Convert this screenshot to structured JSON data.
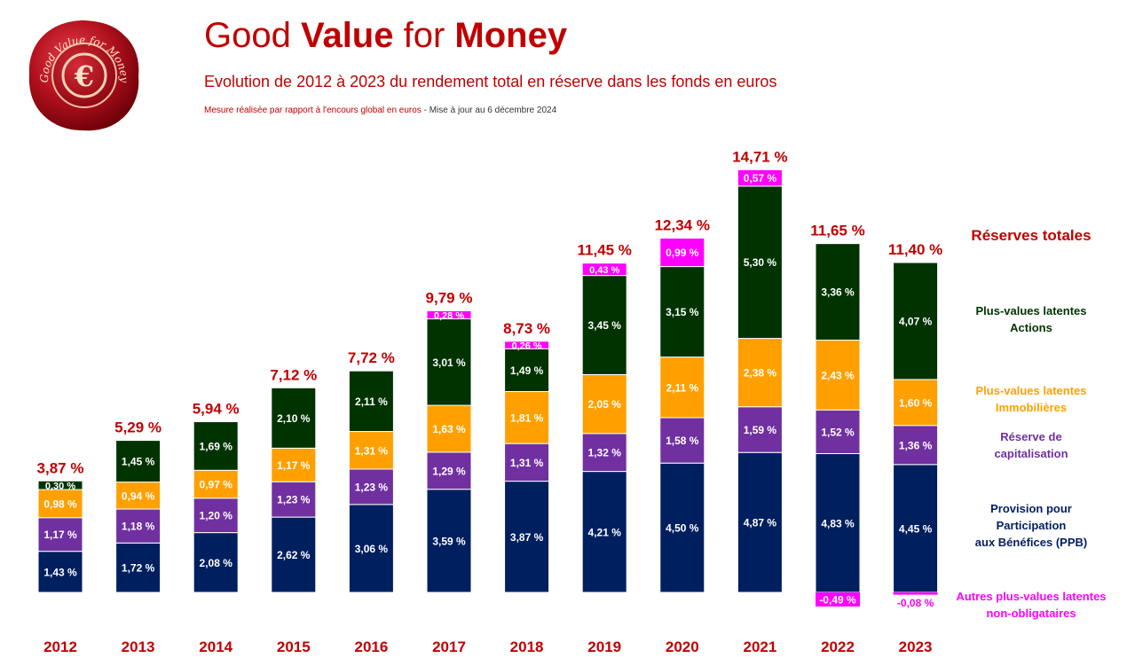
{
  "header": {
    "title_part1": "Good ",
    "title_part2": "Value",
    "title_part3": " for ",
    "title_part4": "Money",
    "subtitle": "Evolution de 2012 à 2023 du rendement total en réserve dans les fonds en euros",
    "note": "Mesure réalisée par rapport à l'encours global en euros",
    "update": " - Mise à jour au 6 décembre 2024"
  },
  "seal": {
    "text": "Good Value for Money",
    "symbol": "€"
  },
  "legend": {
    "total": "Réserves totales",
    "actions": "Plus-values latentes\nActions",
    "immo": "Plus-values latentes\nImmobilières",
    "capi": "Réserve de\ncapitalisation",
    "ppb": "Provision pour\nParticipation\naux Bénéfices (PPB)",
    "autres": "Autres plus-values latentes\nnon-obligataires"
  },
  "colors": {
    "ppb": "#001f5f",
    "capi": "#7030a0",
    "immo": "#ffa000",
    "actions": "#003300",
    "autres": "#ff00ff",
    "total": "#c00000"
  },
  "chart_data": {
    "type": "bar",
    "stacked": true,
    "categories": [
      "2012",
      "2013",
      "2014",
      "2015",
      "2016",
      "2017",
      "2018",
      "2019",
      "2020",
      "2021",
      "2022",
      "2023"
    ],
    "series": [
      {
        "name": "Provision pour Participation aux Bénéfices (PPB)",
        "key": "ppb",
        "values": [
          1.43,
          1.72,
          2.08,
          2.62,
          3.06,
          3.59,
          3.87,
          4.21,
          4.5,
          4.87,
          4.83,
          4.45
        ],
        "labels": [
          "1,43 %",
          "1,72 %",
          "2,08 %",
          "2,62 %",
          "3,06 %",
          "3,59 %",
          "3,87 %",
          "4,21 %",
          "4,50 %",
          "4,87 %",
          "4,83 %",
          "4,45 %"
        ]
      },
      {
        "name": "Réserve de capitalisation",
        "key": "capi",
        "values": [
          1.17,
          1.18,
          1.2,
          1.23,
          1.23,
          1.29,
          1.31,
          1.32,
          1.58,
          1.59,
          1.52,
          1.36
        ],
        "labels": [
          "1,17 %",
          "1,18 %",
          "1,20 %",
          "1,23 %",
          "1,23 %",
          "1,29 %",
          "1,31 %",
          "1,32 %",
          "1,58 %",
          "1,59 %",
          "1,52 %",
          "1,36 %"
        ]
      },
      {
        "name": "Plus-values latentes Immobilières",
        "key": "immo",
        "values": [
          0.98,
          0.94,
          0.97,
          1.17,
          1.31,
          1.63,
          1.81,
          2.05,
          2.11,
          2.38,
          2.43,
          1.6
        ],
        "labels": [
          "0,98 %",
          "0,94 %",
          "0,97 %",
          "1,17 %",
          "1,31 %",
          "1,63 %",
          "1,81 %",
          "2,05 %",
          "2,11 %",
          "2,38 %",
          "2,43 %",
          "1,60 %"
        ]
      },
      {
        "name": "Plus-values latentes Actions",
        "key": "actions",
        "values": [
          0.3,
          1.45,
          1.69,
          2.1,
          2.11,
          3.01,
          1.49,
          3.45,
          3.15,
          5.3,
          3.36,
          4.07
        ],
        "labels": [
          "0,30 %",
          "1,45 %",
          "1,69 %",
          "2,10 %",
          "2,11 %",
          "3,01 %",
          "1,49 %",
          "3,45 %",
          "3,15 %",
          "5,30 %",
          "3,36 %",
          "4,07 %"
        ]
      },
      {
        "name": "Autres plus-values latentes non-obligataires",
        "key": "autres",
        "values": [
          0,
          0,
          0,
          0,
          0,
          0.28,
          0.26,
          0.43,
          0.99,
          0.57,
          -0.49,
          -0.08
        ],
        "labels": [
          "",
          "",
          "",
          "",
          "",
          "0,28 %",
          "0,26 %",
          "0,43 %",
          "0,99 %",
          "0,57 %",
          "-0,49 %",
          "-0,08 %"
        ]
      }
    ],
    "totals": [
      3.87,
      5.29,
      5.94,
      7.12,
      7.72,
      9.79,
      8.73,
      11.45,
      12.34,
      14.71,
      11.65,
      11.4
    ],
    "total_labels": [
      "3,87 %",
      "5,29 %",
      "5,94 %",
      "7,12 %",
      "7,72 %",
      "9,79 %",
      "8,73 %",
      "11,45 %",
      "12,34 %",
      "14,71 %",
      "11,65 %",
      "11,40 %"
    ],
    "grid": false,
    "legend_position": "right"
  }
}
